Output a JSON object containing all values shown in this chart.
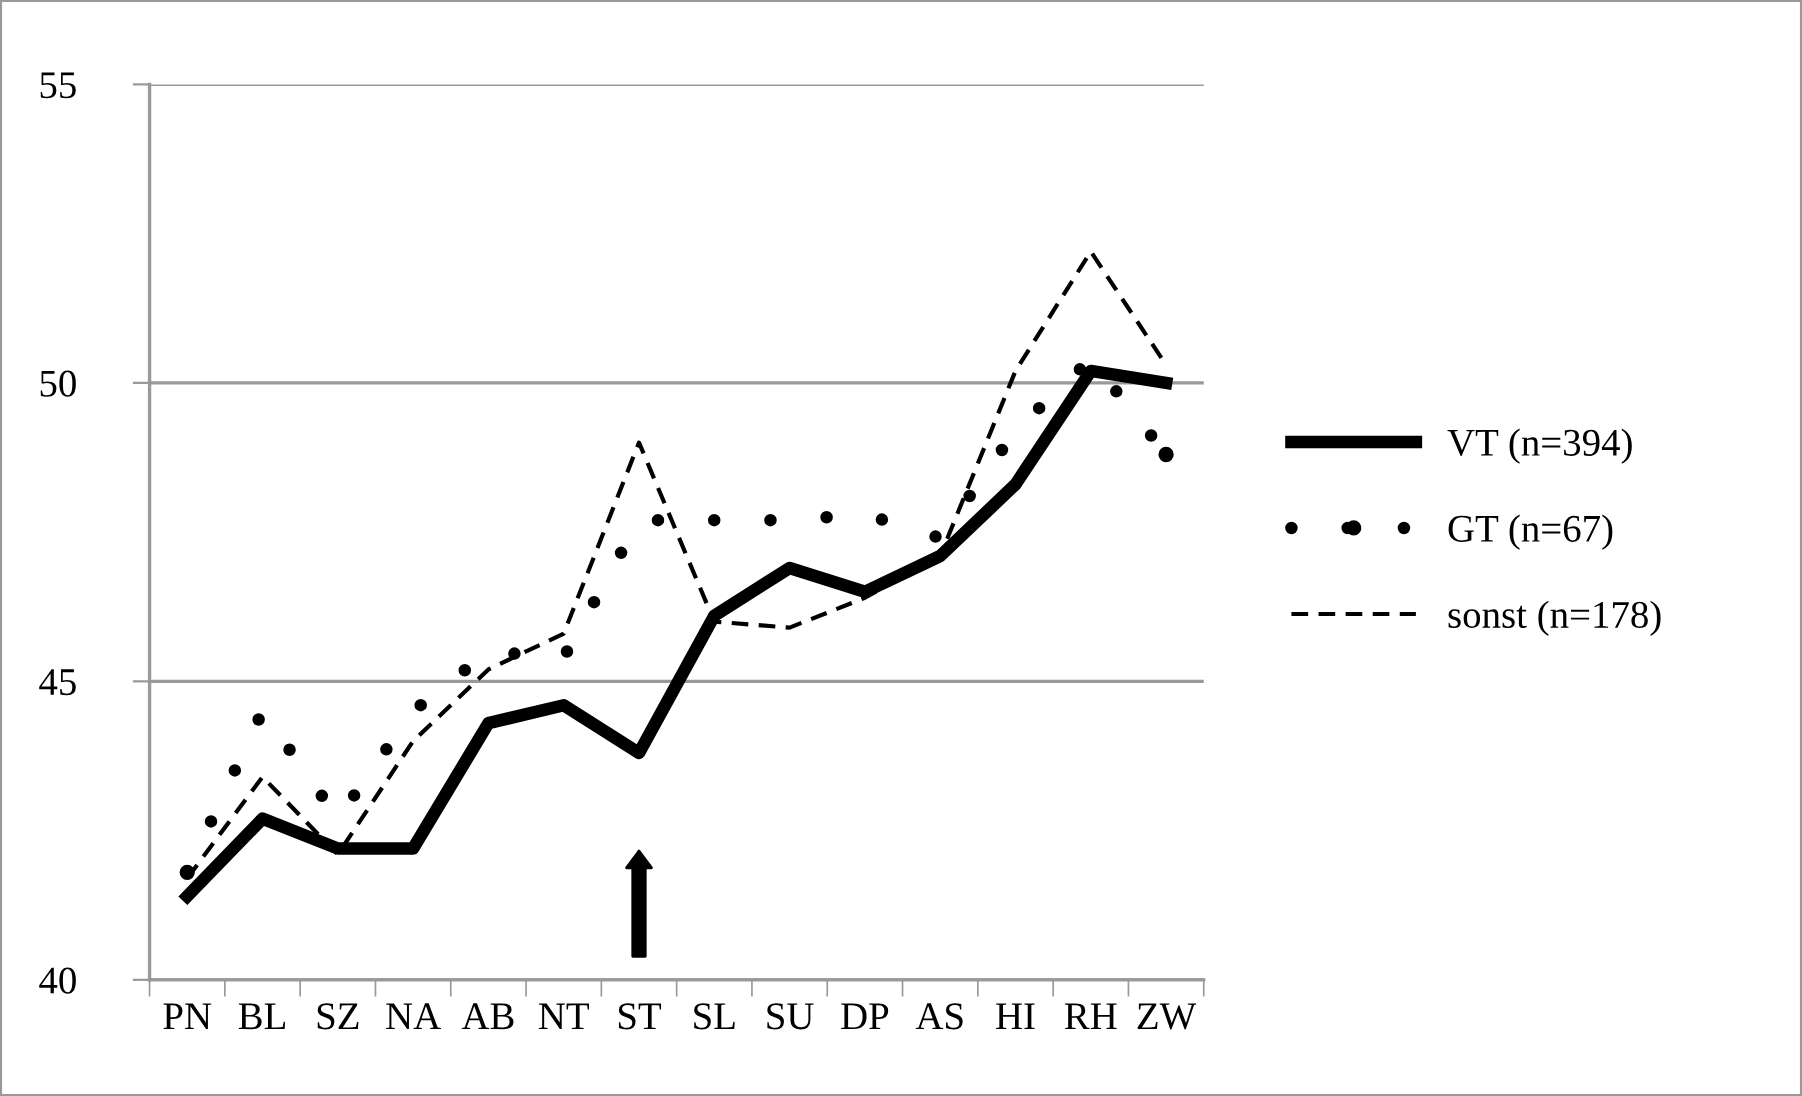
{
  "chart_data": {
    "type": "line",
    "categories": [
      "PN",
      "BL",
      "SZ",
      "NA",
      "AB",
      "NT",
      "ST",
      "SL",
      "SU",
      "DP",
      "AS",
      "HI",
      "RH",
      "ZW"
    ],
    "series": [
      {
        "name": "VT (n=394)",
        "color": "#000000",
        "line_style": "solid",
        "values": [
          41.4,
          42.7,
          42.2,
          42.2,
          44.3,
          44.6,
          43.8,
          46.1,
          46.9,
          46.5,
          47.1,
          48.3,
          50.2,
          50.0
        ]
      },
      {
        "name": "GT (n=67)",
        "color": "#000000",
        "line_style": "dotted",
        "values": [
          41.8,
          44.5,
          42.7,
          44.5,
          45.5,
          45.4,
          47.7,
          47.7,
          47.7,
          47.8,
          47.4,
          49.2,
          50.4,
          48.8
        ]
      },
      {
        "name": "sonst (n=178)",
        "color": "#000000",
        "line_style": "dashed",
        "values": [
          41.7,
          43.4,
          42.1,
          44.0,
          45.2,
          45.8,
          49.0,
          46.0,
          45.9,
          46.4,
          47.1,
          50.2,
          52.2,
          50.3
        ]
      }
    ],
    "ylim": [
      40,
      55
    ],
    "yticks": [
      40,
      45,
      50,
      55
    ],
    "grid": "y",
    "legend": "right",
    "marker": "none"
  }
}
